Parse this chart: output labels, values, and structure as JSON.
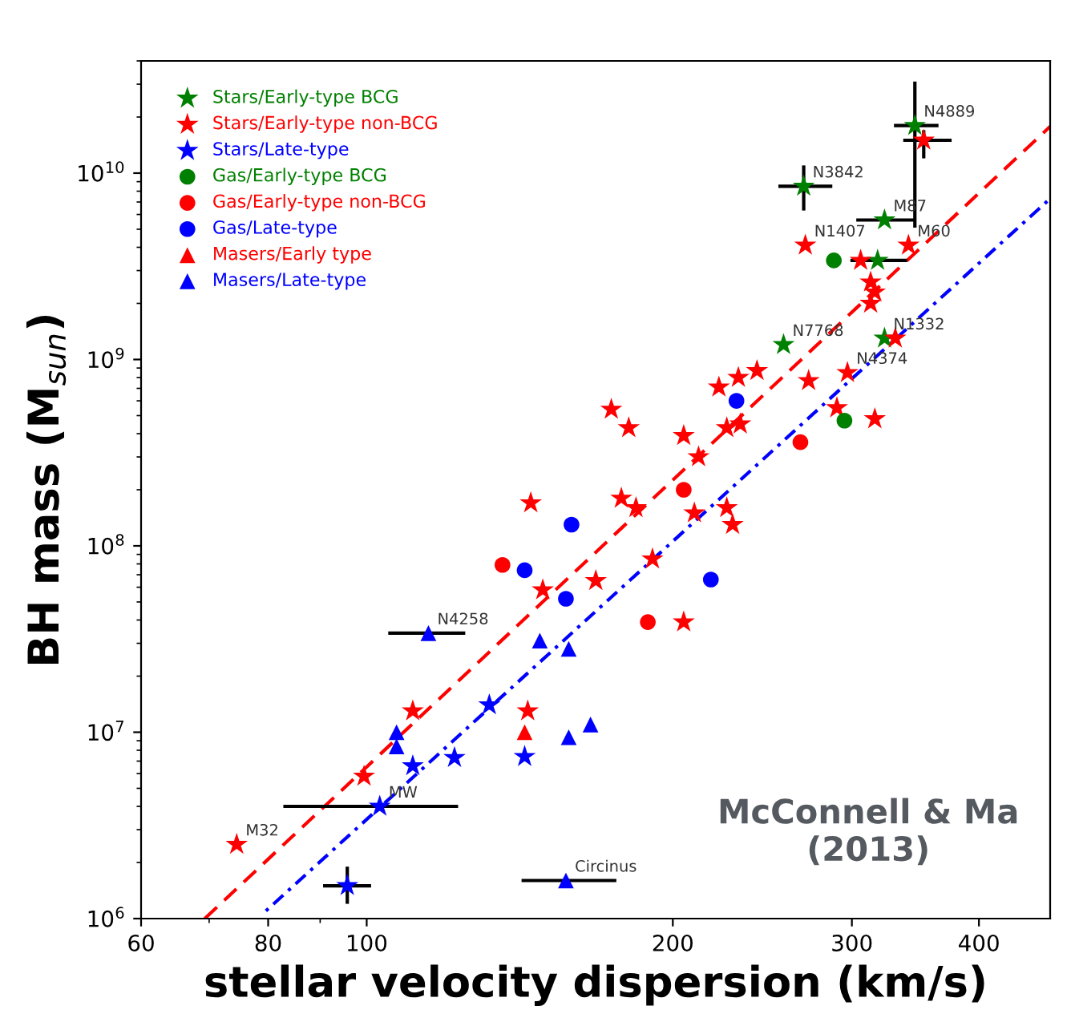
{
  "chart_data": {
    "type": "scatter",
    "xlabel": "stellar velocity dispersion (km/s)",
    "ylabel": "BH mass (M$_{sun}$)",
    "log": "xy",
    "xlim": [
      60,
      470
    ],
    "ylim": [
      1000000,
      40000000000
    ],
    "xticks": [
      60,
      80,
      100,
      200,
      300,
      400
    ],
    "yticks": [
      {
        "value": 1000000,
        "label": "10$^{6}$"
      },
      {
        "value": 10000000,
        "label": "10$^{7}$"
      },
      {
        "value": 100000000,
        "label": "10$^{8}$"
      },
      {
        "value": 1000000000,
        "label": "10$^{9}$"
      },
      {
        "value": 10000000000,
        "label": "10$^{10}$"
      }
    ],
    "grid": false,
    "legend": "top left",
    "series": [
      {
        "name": "Stars/Early-type BCG",
        "color": "#008000",
        "marker": "star",
        "x": [
          346,
          269,
          323,
          318,
          257,
          323
        ],
        "values": [
          18000000000.0,
          8500000000.0,
          5600000000.0,
          3400000000.0,
          1200000000.0,
          1300000000.0
        ],
        "errors": [
          [
            5100000000.0,
            31000000000.0
          ],
          [
            6300000000.0,
            11000000000.0
          ],
          null,
          null,
          null,
          null
        ],
        "xerrors": [
          [
            330,
            365
          ],
          [
            254,
            287
          ],
          [
            303,
            346
          ],
          [
            299,
            340
          ],
          null,
          null
        ]
      },
      {
        "name": "Stars/Early-type non-BCG",
        "color": "#ff0000",
        "marker": "star",
        "x": [
          353,
          270,
          341,
          306,
          313,
          316,
          313,
          331,
          222,
          232,
          242,
          272,
          297,
          174,
          181,
          205,
          212,
          226,
          233,
          290,
          316,
          178,
          184,
          210,
          226,
          229,
          191,
          168,
          205,
          145,
          149,
          111,
          144,
          99.4,
          74.5
        ],
        "values": [
          15000000000.0,
          4100000000.0,
          4100000000.0,
          3400000000.0,
          2600000000.0,
          2300000000.0,
          2000000000.0,
          1300000000.0,
          710000000.0,
          800000000.0,
          870000000.0,
          770000000.0,
          850000000.0,
          540000000.0,
          430000000.0,
          390000000.0,
          300000000.0,
          430000000.0,
          450000000.0,
          550000000.0,
          480000000.0,
          180000000.0,
          160000000.0,
          150000000.0,
          160000000.0,
          130000000.0,
          85000000.0,
          65000000.0,
          39000000.0,
          170000000.0,
          58000000.0,
          13000000.0,
          13000000.0,
          5800000.0,
          2500000.0
        ],
        "errors": [
          [
            12000000000.0,
            17000000000.0
          ],
          null,
          null,
          null,
          null,
          null,
          null,
          null,
          null,
          null,
          null,
          null,
          null,
          null,
          null,
          null,
          null,
          null,
          null,
          null,
          null,
          null,
          null,
          null,
          null,
          null,
          null,
          null,
          null,
          null,
          null,
          null,
          null,
          null,
          null
        ],
        "xerrors": [
          [
            337,
            376
          ],
          null,
          null,
          null,
          null,
          null,
          null,
          null,
          null,
          null,
          null,
          null,
          null,
          null,
          null,
          null,
          null,
          null,
          null,
          null,
          null,
          null,
          null,
          null,
          null,
          null,
          null,
          null,
          null,
          null,
          null,
          null,
          null,
          null,
          null
        ]
      },
      {
        "name": "Stars/Late-type",
        "color": "#0000ff",
        "marker": "star",
        "x": [
          132,
          111,
          103,
          95.7,
          122,
          143
        ],
        "values": [
          14000000.0,
          6600000.0,
          4000000.0,
          1500000.0,
          7300000.0,
          7400000.0
        ],
        "errors": [
          null,
          null,
          null,
          [
            1200000.0,
            1900000.0
          ],
          null,
          null
        ],
        "xerrors": [
          null,
          null,
          [
            82.8,
            123
          ],
          [
            90.6,
            101
          ],
          null,
          null
        ]
      },
      {
        "name": "Gas/Early-type BCG",
        "color": "#008000",
        "marker": "circle",
        "x": [
          288,
          295
        ],
        "values": [
          3400000000.0,
          470000000.0
        ]
      },
      {
        "name": "Gas/Early-type non-BCG",
        "color": "#ff0000",
        "marker": "circle",
        "x": [
          267,
          205,
          189,
          136
        ],
        "values": [
          360000000.0,
          200000000.0,
          39000000.0,
          79000000.0
        ]
      },
      {
        "name": "Gas/Late-type",
        "color": "#0000ff",
        "marker": "circle",
        "x": [
          143,
          159,
          231,
          218,
          157
        ],
        "values": [
          74000000.0,
          130000000.0,
          600000000.0,
          66000000.0,
          52000000.0
        ]
      },
      {
        "name": "Masers/Early type",
        "color": "#ff0000",
        "marker": "triangle",
        "x": [
          143
        ],
        "values": [
          10000000.0
        ]
      },
      {
        "name": "Masers/Late-type",
        "color": "#0000ff",
        "marker": "triangle",
        "x": [
          115,
          107,
          107,
          158,
          166,
          157,
          148,
          158
        ],
        "values": [
          34000000.0,
          10000000.0,
          8400000.0,
          9400000.0,
          11000000.0,
          1600000.0,
          31000000.0,
          28000000.0
        ],
        "xerrors": [
          [
            105,
            125
          ],
          null,
          null,
          null,
          null,
          [
            142,
            176
          ],
          null,
          null
        ]
      },
      {
        "type": "line",
        "color": "#ff0000",
        "line_style": "dashed",
        "x": [
          69.3,
          470
        ],
        "values": [
          1000000.0,
          17800000000.0
        ]
      },
      {
        "type": "line",
        "color": "#0000ff",
        "line_style": "dotted",
        "x": [
          79.6,
          470
        ],
        "values": [
          1100000.0,
          7300000000.0
        ]
      }
    ],
    "annotations": [
      {
        "text": "N4889",
        "x": 346,
        "y": 18000000000.0
      },
      {
        "text": "N3842",
        "x": 269,
        "y": 8500000000.0
      },
      {
        "text": "M87",
        "x": 323,
        "y": 5600000000.0
      },
      {
        "text": "N1407",
        "x": 270,
        "y": 4100000000.0
      },
      {
        "text": "M60",
        "x": 341,
        "y": 4100000000.0
      },
      {
        "text": "N7768",
        "x": 257,
        "y": 1200000000.0
      },
      {
        "text": "N1332",
        "x": 323,
        "y": 1300000000.0
      },
      {
        "text": "N4374",
        "x": 297,
        "y": 850000000.0
      },
      {
        "text": "N4258",
        "x": 115,
        "y": 34000000.0
      },
      {
        "text": "MW",
        "x": 103,
        "y": 4000000.0
      },
      {
        "text": "M32",
        "x": 74.5,
        "y": 2500000.0
      },
      {
        "text": "Circinus",
        "x": 157,
        "y": 1600000.0
      },
      "McConnell & Ma (2013)"
    ]
  }
}
